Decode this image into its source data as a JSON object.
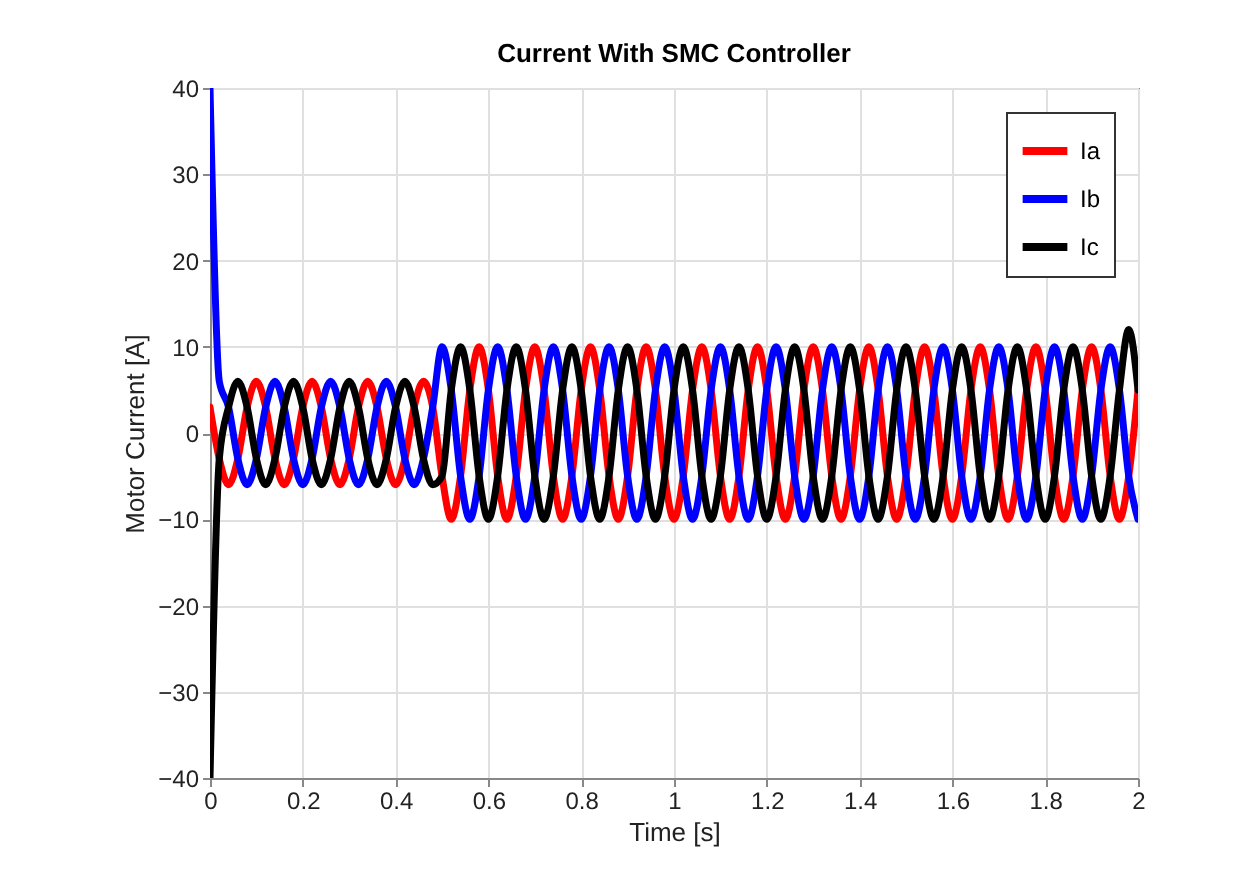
{
  "chart_data": {
    "type": "line",
    "title": "Current With SMC Controller",
    "xlabel": "Time [s]",
    "ylabel": "Motor Current [A]",
    "x": [
      0,
      0.02,
      0.04,
      0.06,
      0.08,
      0.1,
      0.12,
      0.14,
      0.16,
      0.18,
      0.2,
      0.22,
      0.24,
      0.26,
      0.28,
      0.3,
      0.32,
      0.34,
      0.36,
      0.38,
      0.4,
      0.42,
      0.44,
      0.46,
      0.48,
      0.5,
      0.52,
      0.54,
      0.56,
      0.58,
      0.6,
      0.62,
      0.64,
      0.66,
      0.68,
      0.7,
      0.72,
      0.74,
      0.76,
      0.78,
      0.8,
      0.82,
      0.84,
      0.86,
      0.88,
      0.9,
      0.92,
      0.94,
      0.96,
      0.98,
      1,
      1.02,
      1.04,
      1.06,
      1.08,
      1.1,
      1.12,
      1.14,
      1.16,
      1.18,
      1.2,
      1.22,
      1.24,
      1.26,
      1.28,
      1.3,
      1.32,
      1.34,
      1.36,
      1.38,
      1.4,
      1.42,
      1.44,
      1.46,
      1.48,
      1.5,
      1.52,
      1.54,
      1.56,
      1.58,
      1.6,
      1.62,
      1.64,
      1.66,
      1.68,
      1.7,
      1.72,
      1.74,
      1.76,
      1.78,
      1.8,
      1.82,
      1.84,
      1.86,
      1.88,
      1.9,
      1.92,
      1.94,
      1.96,
      1.98,
      2
    ],
    "series": [
      {
        "name": "Ia",
        "color": "#ff0000",
        "values": [
          3,
          -3,
          -6,
          -3,
          3,
          6,
          3,
          -3,
          -6,
          -3,
          3,
          6,
          3,
          -3,
          -6,
          -3,
          3,
          6,
          3,
          -3,
          -6,
          -3,
          3,
          6,
          3,
          -5,
          -10,
          -5,
          5,
          10,
          5,
          -5,
          -10,
          -5,
          5,
          10,
          5,
          -5,
          -10,
          -5,
          5,
          10,
          5,
          -5,
          -10,
          -5,
          5,
          10,
          5,
          -5,
          -10,
          -5,
          5,
          10,
          5,
          -5,
          -10,
          -5,
          5,
          10,
          5,
          -5,
          -10,
          -5,
          5,
          10,
          5,
          -5,
          -10,
          -5,
          5,
          10,
          5,
          -5,
          -10,
          -5,
          5,
          10,
          5,
          -5,
          -10,
          -5,
          5,
          10,
          5,
          -5,
          -10,
          -5,
          5,
          10,
          5,
          -5,
          -10,
          -5,
          5,
          10,
          5,
          -5,
          -10,
          -5,
          5
        ]
      },
      {
        "name": "Ib",
        "color": "#0000ff",
        "values": [
          40,
          6,
          3,
          -3,
          -6,
          -3,
          3,
          6,
          3,
          -3,
          -6,
          -3,
          3,
          6,
          3,
          -3,
          -6,
          -3,
          3,
          6,
          3,
          -3,
          -6,
          -3,
          3,
          10,
          5,
          -5,
          -10,
          -5,
          5,
          10,
          5,
          -5,
          -10,
          -5,
          5,
          10,
          5,
          -5,
          -10,
          -5,
          5,
          10,
          5,
          -5,
          -10,
          -5,
          5,
          10,
          5,
          -5,
          -10,
          -5,
          5,
          10,
          5,
          -5,
          -10,
          -5,
          5,
          10,
          5,
          -5,
          -10,
          -5,
          5,
          10,
          5,
          -5,
          -10,
          -5,
          5,
          10,
          5,
          -5,
          -10,
          -5,
          5,
          10,
          5,
          -5,
          -10,
          -5,
          5,
          10,
          5,
          -5,
          -10,
          -5,
          5,
          10,
          5,
          -5,
          -10,
          -5,
          5,
          10,
          5,
          -5,
          -10
        ]
      },
      {
        "name": "Ic",
        "color": "#000000",
        "values": [
          -40,
          -3,
          3,
          6,
          3,
          -3,
          -6,
          -3,
          3,
          6,
          3,
          -3,
          -6,
          -3,
          3,
          6,
          3,
          -3,
          -6,
          -3,
          3,
          6,
          3,
          -3,
          -6,
          -5,
          5,
          10,
          5,
          -5,
          -10,
          -5,
          5,
          10,
          5,
          -5,
          -10,
          -5,
          5,
          10,
          5,
          -5,
          -10,
          -5,
          5,
          10,
          5,
          -5,
          -10,
          -5,
          5,
          10,
          5,
          -5,
          -10,
          -5,
          5,
          10,
          5,
          -5,
          -10,
          -5,
          5,
          10,
          5,
          -5,
          -10,
          -5,
          5,
          10,
          5,
          -5,
          -10,
          -5,
          5,
          10,
          5,
          -5,
          -10,
          -5,
          5,
          10,
          5,
          -5,
          -10,
          -5,
          5,
          10,
          5,
          -5,
          -10,
          -5,
          5,
          10,
          5,
          -5,
          -10,
          -5,
          5,
          12,
          5
        ]
      }
    ],
    "xlim": [
      0,
      2
    ],
    "xticks": [
      0,
      0.2,
      0.4,
      0.6,
      0.8,
      1,
      1.2,
      1.4,
      1.6,
      1.8,
      2
    ],
    "ylim": [
      -40,
      40
    ],
    "yticks": [
      -40,
      -30,
      -20,
      -10,
      0,
      10,
      20,
      30,
      40
    ],
    "grid": true,
    "legend": "top right",
    "marker": "none",
    "line_style": "solid"
  }
}
